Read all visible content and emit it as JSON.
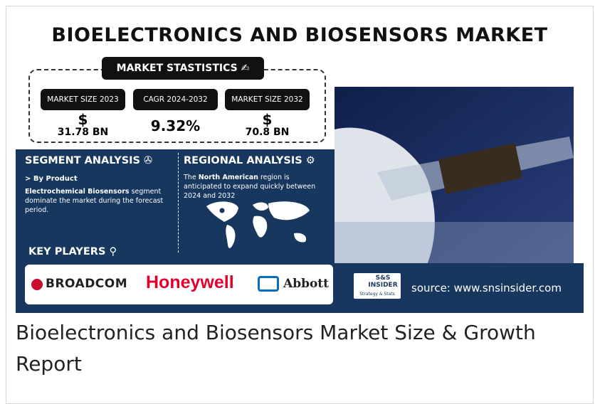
{
  "infographic": {
    "title": "BIOELECTRONICS AND BIOSENSORS MARKET",
    "market_statistics": {
      "label": "MARKET STASTISTICS",
      "items": [
        {
          "label": "MARKET SIZE 2023",
          "prefix": "$",
          "value": "31.78 BN"
        },
        {
          "label": "CAGR 2024-2032",
          "value": "9.32%"
        },
        {
          "label": "MARKET SIZE 2032",
          "prefix": "$",
          "value": "70.8 BN"
        }
      ]
    },
    "segment_analysis": {
      "title": "SEGMENT ANALYSIS",
      "subtitle": "> By Product",
      "text_bold": "Electrochemical Biosensors",
      "text": " segment dominate the market during the forecast period."
    },
    "regional_analysis": {
      "title": "REGIONAL ANALYSIS",
      "text_before": "The ",
      "text_bold": "North American",
      "text_after": " region is anticipated to expand quickly between 2024 and 2032"
    },
    "key_players": {
      "title": "KEY PLAYERS",
      "companies": [
        "BROADCOM",
        "Honeywell",
        "Abbott"
      ]
    },
    "logo": {
      "name": "S&S INSIDER",
      "tagline": "Strategy & Stats"
    },
    "source": "source: www.snsinsider.com"
  },
  "caption": "Bioelectronics and Biosensors Market Size & Growth Report"
}
